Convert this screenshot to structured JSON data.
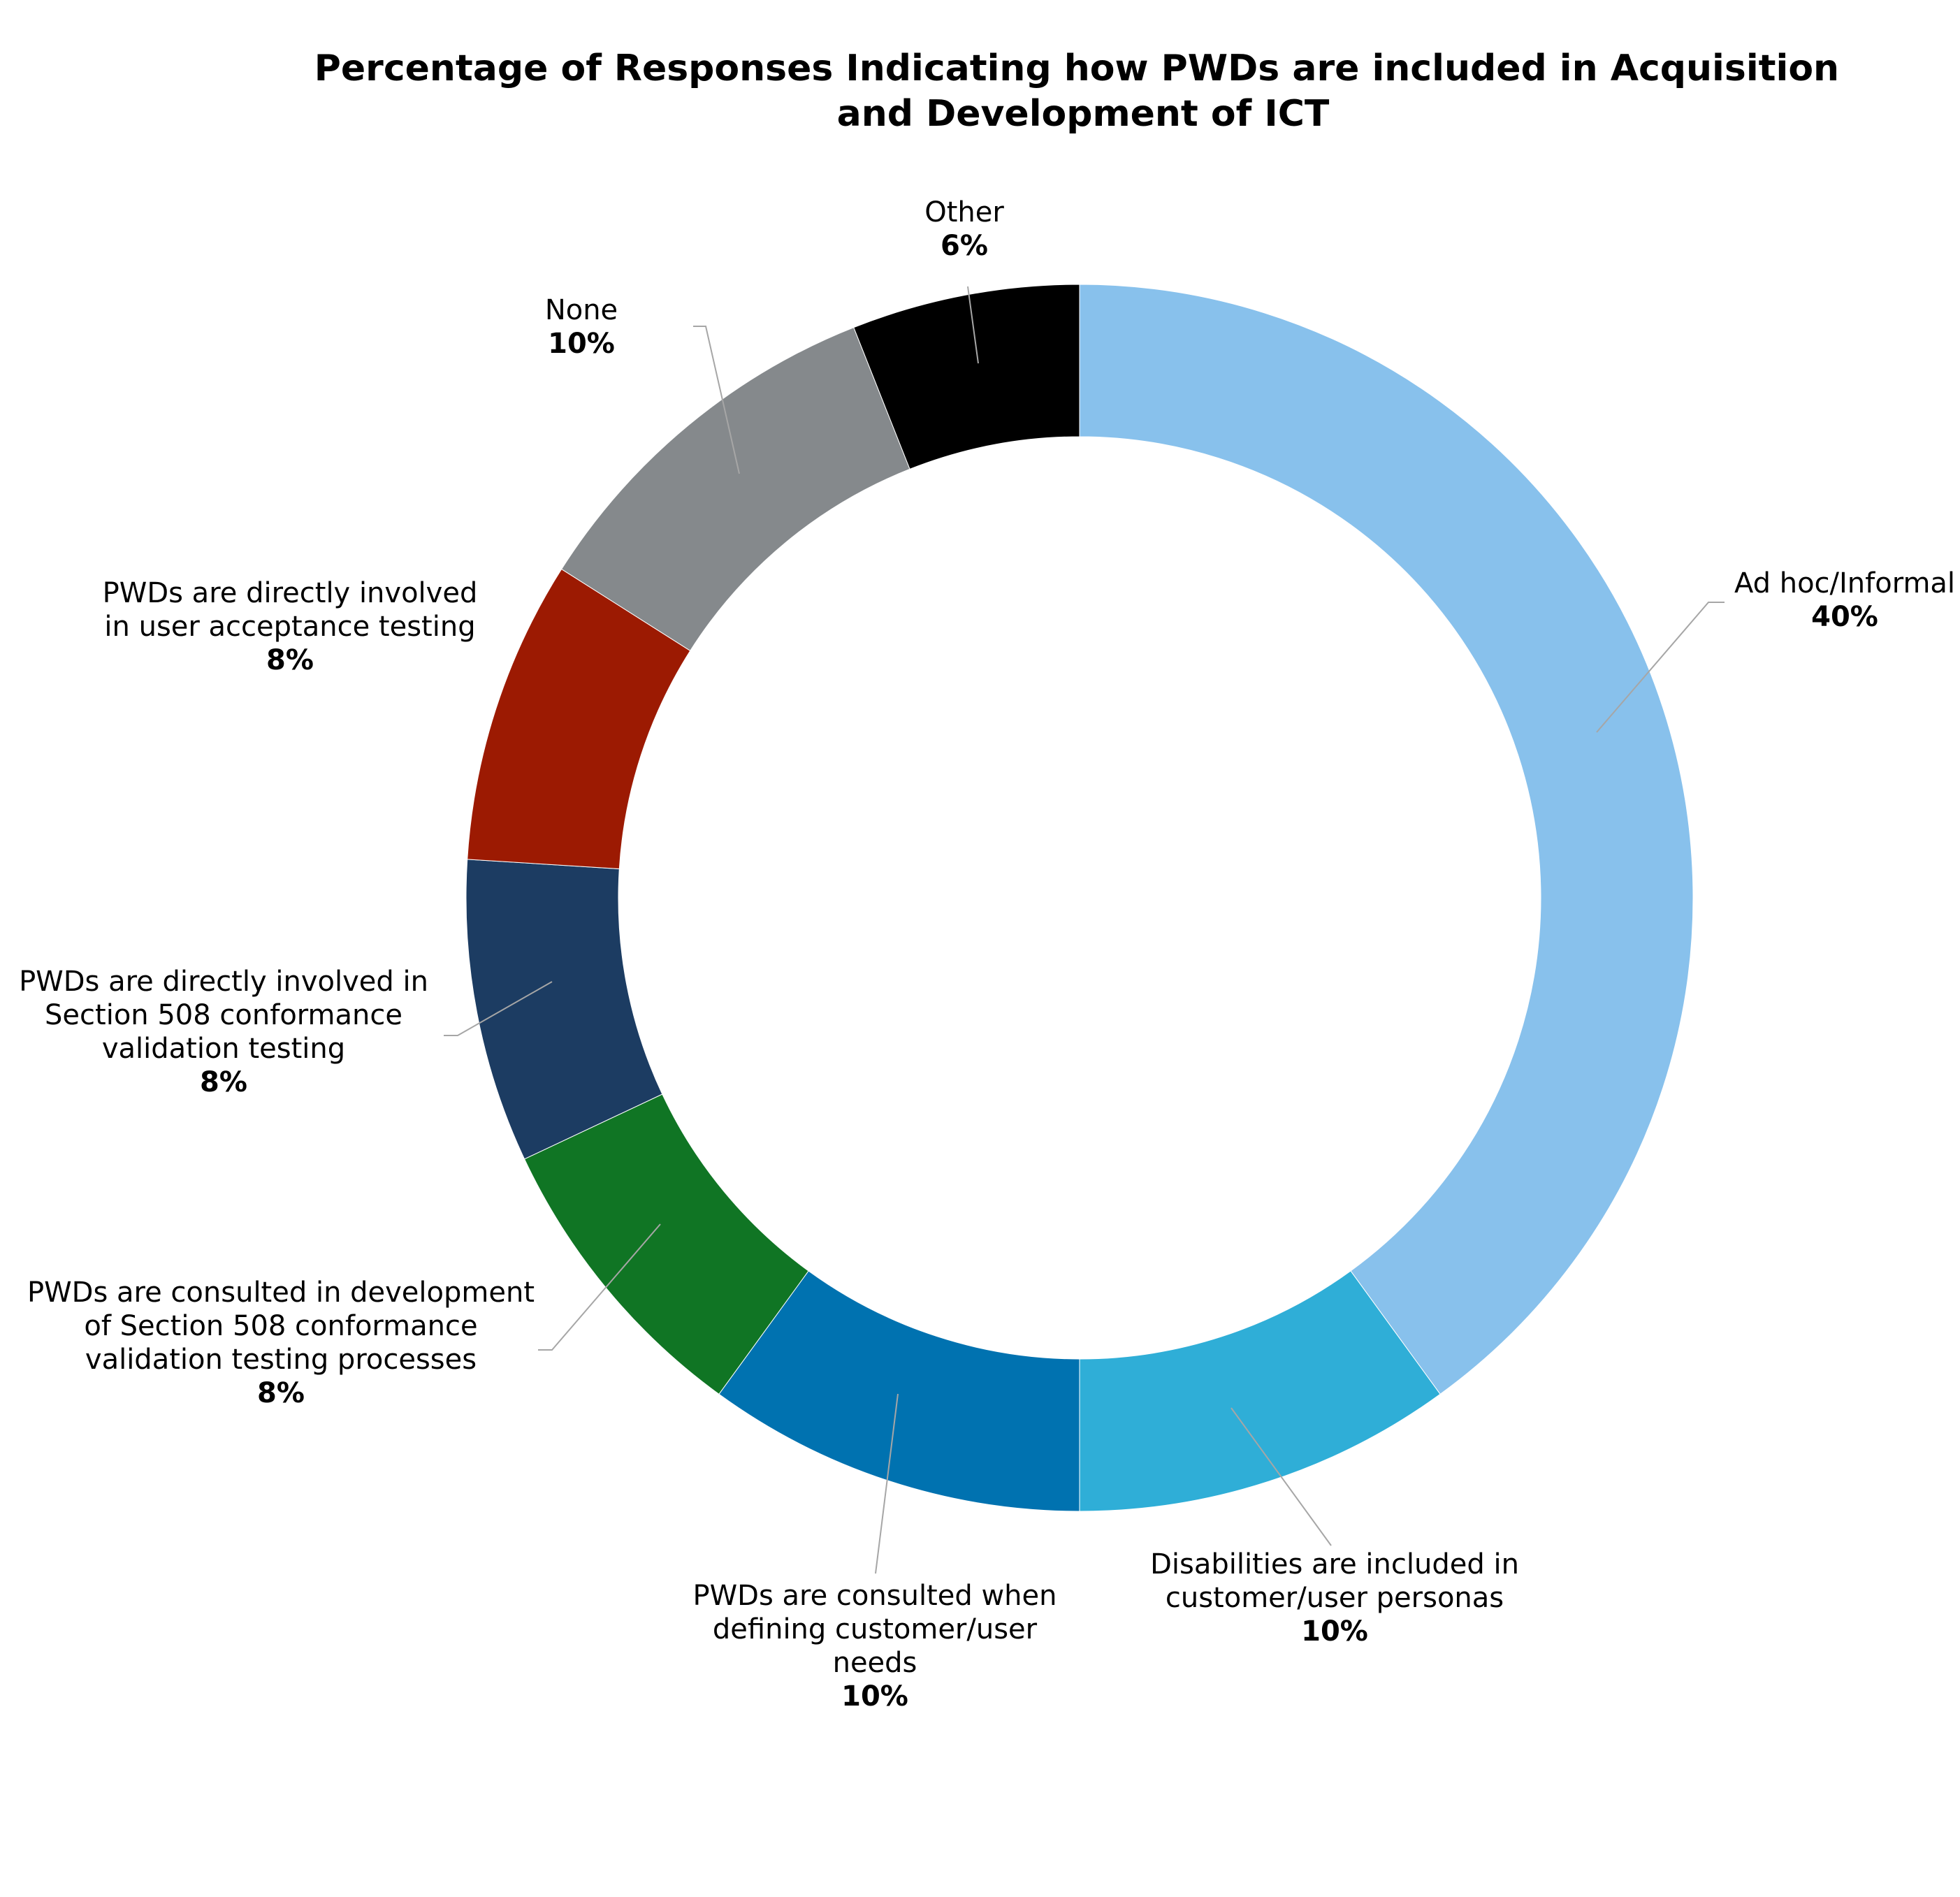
{
  "chart_data": {
    "type": "pie",
    "donut": true,
    "title": [
      "Percentage of Responses Indicating how PWDs are included in Acquisition",
      "and Development of ICT"
    ],
    "series": [
      {
        "name": "Ad hoc/Informal",
        "lines": [
          "Ad hoc/Informal"
        ],
        "value": 40,
        "pct_label": "40%",
        "color": "#88C1EC"
      },
      {
        "name": "Disabilities are included in customer/user personas",
        "lines": [
          "Disabilities are included in",
          "customer/user personas"
        ],
        "value": 10,
        "pct_label": "10%",
        "color": "#2FAED7"
      },
      {
        "name": "PWDs are consulted when defining customer/user needs",
        "lines": [
          "PWDs are consulted when",
          "defining customer/user",
          "needs"
        ],
        "value": 10,
        "pct_label": "10%",
        "color": "#0072B0"
      },
      {
        "name": "PWDs are consulted in development of Section 508 conformance validation testing processes",
        "lines": [
          "PWDs are consulted in development",
          "of Section 508 conformance",
          "validation testing processes"
        ],
        "value": 8,
        "pct_label": "8%",
        "color": "#107524"
      },
      {
        "name": "PWDs are directly involved in Section 508 conformance validation testing",
        "lines": [
          "PWDs are directly involved in",
          "Section 508 conformance",
          "validation testing"
        ],
        "value": 8,
        "pct_label": "8%",
        "color": "#1C3C62"
      },
      {
        "name": "PWDs are directly involved in user acceptance testing",
        "lines": [
          "PWDs are directly involved",
          "in user acceptance testing"
        ],
        "value": 8,
        "pct_label": "8%",
        "color": "#9C1A02"
      },
      {
        "name": "None",
        "lines": [
          "None"
        ],
        "value": 10,
        "pct_label": "10%",
        "color": "#85898C"
      },
      {
        "name": "Other",
        "lines": [
          "Other"
        ],
        "value": 6,
        "pct_label": "6%",
        "color": "#000000"
      }
    ]
  }
}
